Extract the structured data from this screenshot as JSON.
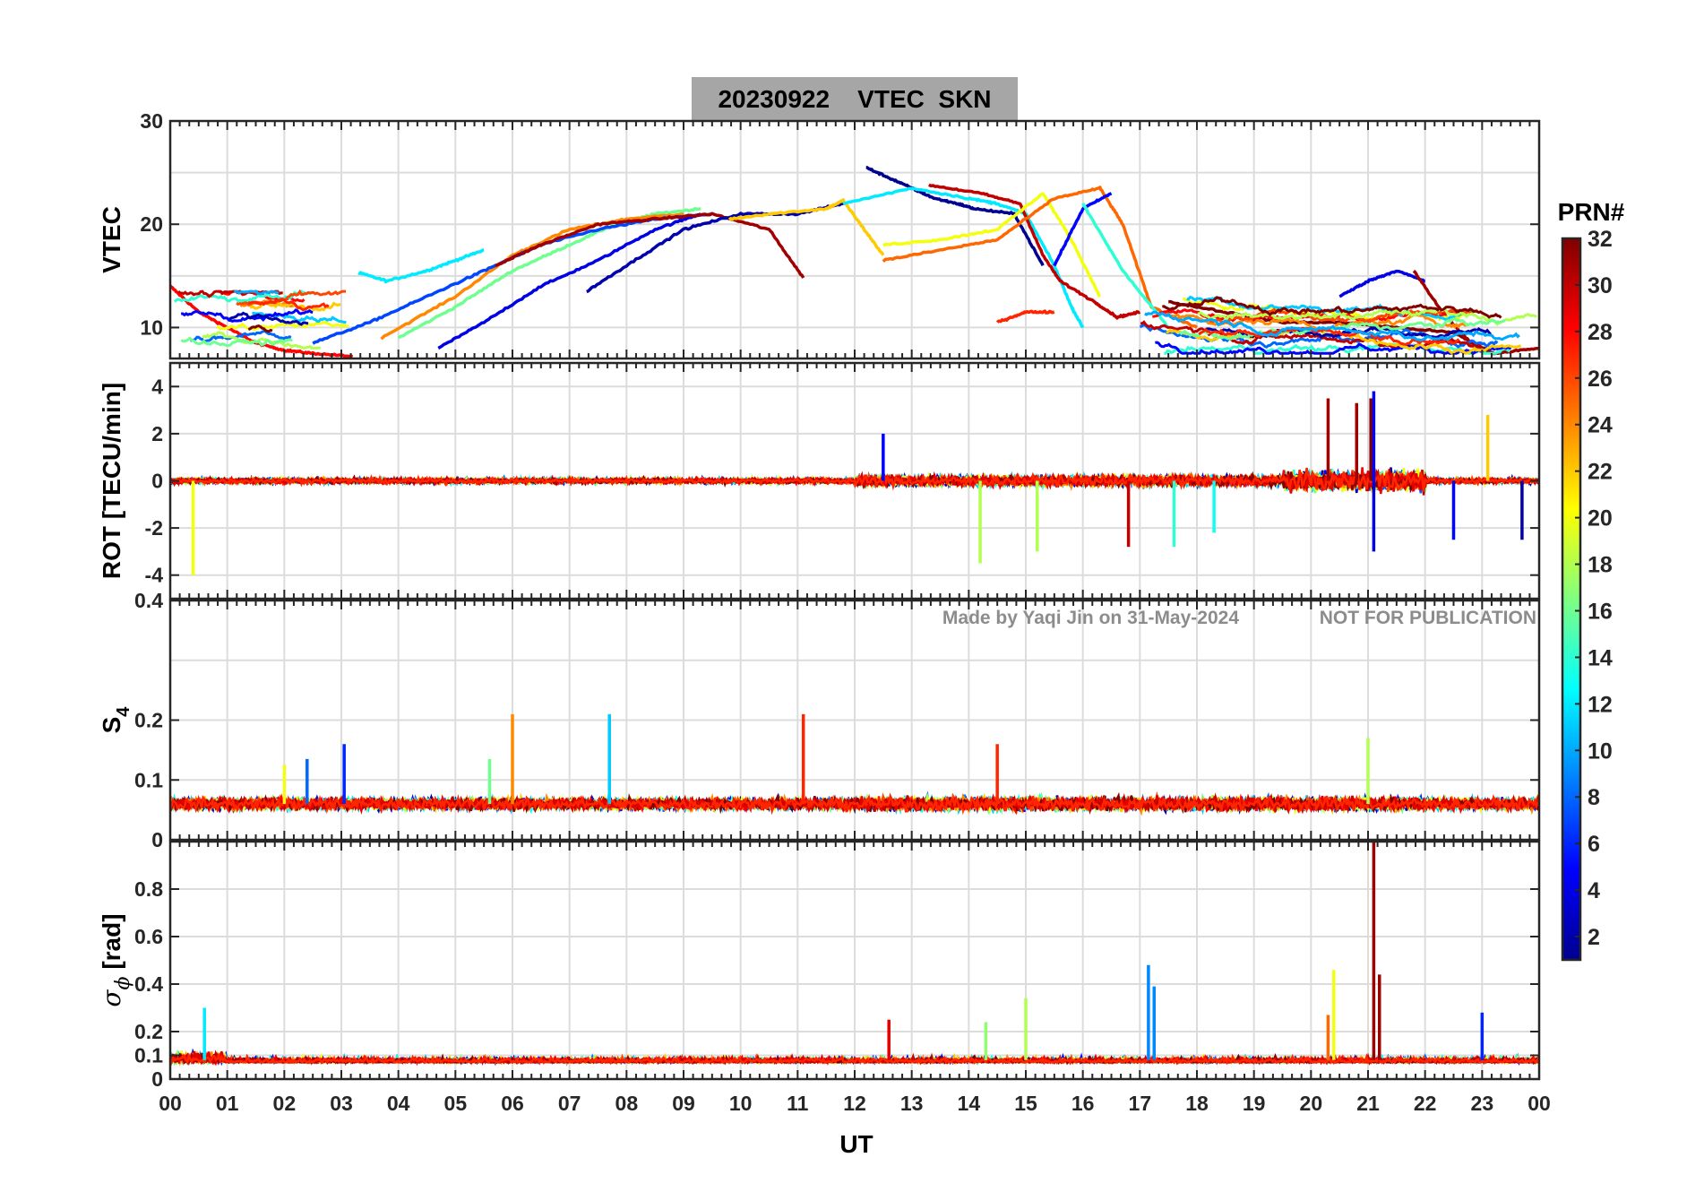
{
  "figure": {
    "title": "20230922    VTEC  SKN",
    "xlabel": "UT",
    "watermark_left": "Made by Yaqi Jin on 31-May-2024",
    "watermark_right": "NOT FOR PUBLICATION",
    "title_bg_color": "#a6a6a6",
    "grid_color": "#dcdcdc"
  },
  "chart_data": [
    {
      "type": "line",
      "panel": "VTEC",
      "ylabel": "VTEC",
      "ylim": [
        7,
        30
      ],
      "yticks": [
        10,
        20,
        30
      ],
      "xlim": [
        0,
        24
      ],
      "grid": true,
      "series": [
        {
          "prn": 28,
          "x": [
            0,
            0.5,
            1,
            1.5,
            2,
            2.5,
            3.2
          ],
          "y": [
            14,
            11.5,
            10,
            8.5,
            7.8,
            7.5,
            7.2
          ]
        },
        {
          "prn": 12,
          "x": [
            3.3,
            3.8,
            4.5,
            5,
            5.5
          ],
          "y": [
            15.3,
            14.5,
            15.5,
            16.5,
            17.5
          ]
        },
        {
          "prn": 16,
          "x": [
            4,
            5,
            6,
            7,
            7.8,
            8.5,
            9.3
          ],
          "y": [
            9,
            12,
            15.5,
            18,
            20,
            21,
            21.5
          ]
        },
        {
          "prn": 24,
          "x": [
            3.7,
            5,
            6,
            7,
            8,
            9
          ],
          "y": [
            9,
            13,
            17,
            19.5,
            20.5,
            21
          ]
        },
        {
          "prn": 7,
          "x": [
            2.5,
            3.5,
            4.5,
            5.5,
            6.5,
            7.5,
            8.5,
            9.5
          ],
          "y": [
            8.5,
            10.5,
            13,
            15.5,
            18,
            19.5,
            20.5,
            21
          ]
        },
        {
          "prn": 4,
          "x": [
            4.7,
            5.5,
            6.5,
            7.5,
            8.5,
            9.3
          ],
          "y": [
            8,
            10.5,
            14,
            16.5,
            19.5,
            21
          ]
        },
        {
          "prn": 31,
          "x": [
            5.7,
            6.5,
            7.5,
            8.5,
            9.5,
            10.5,
            11.1
          ],
          "y": [
            16,
            18,
            20,
            20.5,
            21,
            19.5,
            14.8
          ]
        },
        {
          "prn": 2,
          "x": [
            7.3,
            8,
            9,
            10,
            11,
            11.8
          ],
          "y": [
            13.5,
            16,
            19.5,
            21,
            21,
            22
          ]
        },
        {
          "prn": 22,
          "x": [
            9.8,
            10.5,
            11.5,
            11.8,
            12.1,
            12.5
          ],
          "y": [
            20.5,
            21,
            21.5,
            22.3,
            20,
            17
          ]
        },
        {
          "prn": 1,
          "x": [
            12.2,
            12.6,
            13,
            13.4,
            13.8,
            14.1,
            14.8,
            15.3
          ],
          "y": [
            25.5,
            24.5,
            23.5,
            22.5,
            22,
            21.5,
            21,
            16
          ]
        },
        {
          "prn": 12,
          "x": [
            11.8,
            13,
            14,
            14.5,
            15,
            15.5,
            15.8,
            16
          ],
          "y": [
            22,
            23.5,
            22.5,
            22,
            21,
            16,
            12,
            10
          ]
        },
        {
          "prn": 30,
          "x": [
            13.3,
            14.2,
            14.9,
            15.3,
            15.6,
            16.2,
            16.6,
            17
          ],
          "y": [
            23.8,
            23,
            22,
            17,
            14.5,
            12.5,
            11,
            11.5
          ]
        },
        {
          "prn": 20,
          "x": [
            12.5,
            13.5,
            14.5,
            15.3,
            15.8,
            16.3
          ],
          "y": [
            18,
            18.5,
            19.5,
            23,
            18.5,
            13
          ]
        },
        {
          "prn": 25,
          "x": [
            12.5,
            13.5,
            14.5,
            15.5,
            16.3,
            16.7,
            17.2,
            18
          ],
          "y": [
            16.5,
            17.5,
            18.5,
            22.5,
            23.5,
            20,
            12,
            10
          ]
        },
        {
          "prn": 5,
          "x": [
            15.5,
            16,
            16.5
          ],
          "y": [
            16,
            21.5,
            23
          ]
        },
        {
          "prn": 14,
          "x": [
            16,
            16.7,
            17.5
          ],
          "y": [
            22,
            15.5,
            10
          ]
        },
        {
          "prn": 27,
          "x": [
            14.5,
            15,
            15.5
          ],
          "y": [
            10.5,
            11.5,
            11.5
          ]
        },
        {
          "prn": 32,
          "x": [
            17.5,
            18.5,
            19.5,
            20.5,
            21.5,
            22.5,
            23.2
          ],
          "y": [
            12.5,
            11.5,
            10.5,
            10.5,
            10,
            9.5,
            7.5
          ]
        },
        {
          "prn": 4,
          "x": [
            20.5,
            21,
            21.5,
            22
          ],
          "y": [
            13,
            14.5,
            15.5,
            14.5
          ]
        },
        {
          "prn": 31,
          "x": [
            21.8,
            22.3,
            22.8,
            23.2,
            24
          ],
          "y": [
            15.5,
            11.5,
            8.5,
            7.5,
            8
          ]
        }
      ]
    },
    {
      "type": "line",
      "panel": "ROT",
      "ylabel": "ROT [TECU/min]",
      "ylim": [
        -5,
        5
      ],
      "yticks": [
        -4,
        -2,
        0,
        2,
        4
      ],
      "xlim": [
        0,
        24
      ],
      "grid": true,
      "spikes": [
        {
          "prn": 20,
          "x": 0.4,
          "y": -4
        },
        {
          "prn": 5,
          "x": 12.5,
          "y": 2
        },
        {
          "prn": 18,
          "x": 14.2,
          "y": -3.5
        },
        {
          "prn": 18,
          "x": 15.2,
          "y": -3
        },
        {
          "prn": 30,
          "x": 16.8,
          "y": -2.8
        },
        {
          "prn": 14,
          "x": 17.6,
          "y": -2.8
        },
        {
          "prn": 13,
          "x": 18.3,
          "y": -2.2
        },
        {
          "prn": 31,
          "x": 20.3,
          "y": 3.5
        },
        {
          "prn": 31,
          "x": 20.8,
          "y": 3.3
        },
        {
          "prn": 32,
          "x": 21.05,
          "y": 3.5
        },
        {
          "prn": 5,
          "x": 21.1,
          "y": 3.8
        },
        {
          "prn": 4,
          "x": 21.1,
          "y": -3
        },
        {
          "prn": 5,
          "x": 22.5,
          "y": -2.5
        },
        {
          "prn": 22,
          "x": 23.1,
          "y": 2.8
        },
        {
          "prn": 2,
          "x": 23.7,
          "y": -2.5
        }
      ]
    },
    {
      "type": "line",
      "panel": "S4",
      "ylabel": "S4",
      "ylim": [
        0,
        0.4
      ],
      "yticks": [
        0,
        0.1,
        0.2,
        0.4
      ],
      "xlim": [
        0,
        24
      ],
      "grid": true,
      "spikes": [
        {
          "prn": 24,
          "x": 6.0,
          "y": 0.21
        },
        {
          "prn": 11,
          "x": 7.7,
          "y": 0.21
        },
        {
          "prn": 27,
          "x": 11.1,
          "y": 0.21
        },
        {
          "prn": 27,
          "x": 14.5,
          "y": 0.16
        },
        {
          "prn": 6,
          "x": 3.05,
          "y": 0.16
        },
        {
          "prn": 8,
          "x": 2.4,
          "y": 0.135
        },
        {
          "prn": 18,
          "x": 21.0,
          "y": 0.17
        },
        {
          "prn": 20,
          "x": 2.0,
          "y": 0.125
        },
        {
          "prn": 16,
          "x": 5.6,
          "y": 0.135
        }
      ]
    },
    {
      "type": "line",
      "panel": "sigma_phi",
      "ylabel": "σϕ [rad]",
      "ylim": [
        0,
        1
      ],
      "yticks": [
        0,
        0.1,
        0.2,
        0.4,
        0.6,
        0.8
      ],
      "xlim": [
        0,
        24
      ],
      "grid": true,
      "spikes": [
        {
          "prn": 12,
          "x": 0.6,
          "y": 0.3
        },
        {
          "prn": 29,
          "x": 12.6,
          "y": 0.25
        },
        {
          "prn": 17,
          "x": 14.3,
          "y": 0.24
        },
        {
          "prn": 18,
          "x": 15.0,
          "y": 0.34
        },
        {
          "prn": 9,
          "x": 17.15,
          "y": 0.48
        },
        {
          "prn": 9,
          "x": 17.25,
          "y": 0.39
        },
        {
          "prn": 20,
          "x": 20.4,
          "y": 0.46
        },
        {
          "prn": 25,
          "x": 20.3,
          "y": 0.27
        },
        {
          "prn": 31,
          "x": 21.1,
          "y": 1.0
        },
        {
          "prn": 31,
          "x": 21.2,
          "y": 0.44
        },
        {
          "prn": 6,
          "x": 23.0,
          "y": 0.28
        }
      ]
    }
  ],
  "xticks": [
    "00",
    "01",
    "02",
    "03",
    "04",
    "05",
    "06",
    "07",
    "08",
    "09",
    "10",
    "11",
    "12",
    "13",
    "14",
    "15",
    "16",
    "17",
    "18",
    "19",
    "20",
    "21",
    "22",
    "23",
    "00"
  ],
  "colorbar": {
    "label": "PRN#",
    "min": 1,
    "max": 32,
    "ticks": [
      2,
      4,
      6,
      8,
      10,
      12,
      14,
      16,
      18,
      20,
      22,
      24,
      26,
      28,
      30,
      32
    ],
    "colormap": [
      "#00008f",
      "#0000ff",
      "#0080ff",
      "#00ffff",
      "#80ff80",
      "#ffff00",
      "#ff8000",
      "#ff0000",
      "#800000"
    ]
  }
}
